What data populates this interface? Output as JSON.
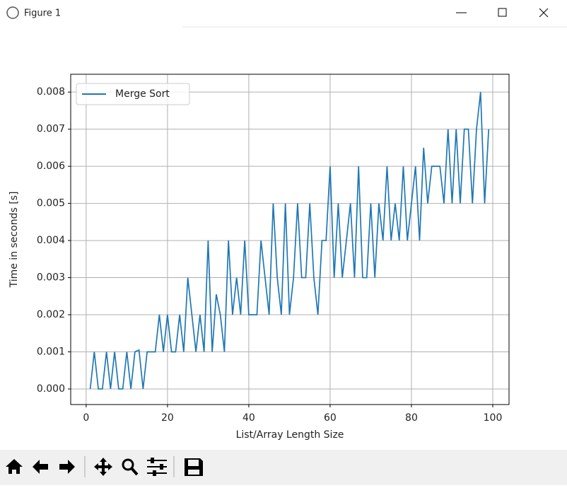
{
  "window": {
    "title": "Figure 1"
  },
  "chart_data": {
    "type": "line",
    "xlabel": "List/Array Length Size",
    "ylabel": "Time in seconds [s]",
    "x": [
      1,
      2,
      3,
      4,
      5,
      6,
      7,
      8,
      9,
      10,
      11,
      12,
      13,
      14,
      15,
      16,
      17,
      18,
      19,
      20,
      21,
      22,
      23,
      24,
      25,
      26,
      27,
      28,
      29,
      30,
      31,
      32,
      33,
      34,
      35,
      36,
      37,
      38,
      39,
      40,
      41,
      42,
      43,
      44,
      45,
      46,
      47,
      48,
      49,
      50,
      51,
      52,
      53,
      54,
      55,
      56,
      57,
      58,
      59,
      60,
      61,
      62,
      63,
      64,
      65,
      66,
      67,
      68,
      69,
      70,
      71,
      72,
      73,
      74,
      75,
      76,
      77,
      78,
      79,
      80,
      81,
      82,
      83,
      84,
      85,
      86,
      87,
      88,
      89,
      90,
      91,
      92,
      93,
      94,
      95,
      96,
      97,
      98,
      99
    ],
    "series": [
      {
        "name": "Merge Sort",
        "color": "#1f77b4",
        "values": [
          0,
          0.001,
          0,
          0,
          0.001,
          0,
          0.001,
          0,
          0,
          0.001,
          0,
          0.001,
          0.00105,
          0,
          0.001,
          0.001,
          0.001,
          0.002,
          0.001,
          0.002,
          0.001,
          0.001,
          0.002,
          0.001,
          0.003,
          0.002,
          0.001,
          0.002,
          0.001,
          0.004,
          0.001,
          0.00255,
          0.002,
          0.001,
          0.004,
          0.002,
          0.003,
          0.002,
          0.004,
          0.002,
          0.002,
          0.002,
          0.004,
          0.003,
          0.002,
          0.005,
          0.003,
          0.002,
          0.005,
          0.002,
          0.003,
          0.005,
          0.003,
          0.003,
          0.005,
          0.003,
          0.002,
          0.004,
          0.004,
          0.006,
          0.003,
          0.005,
          0.003,
          0.004,
          0.005,
          0.003,
          0.006,
          0.003,
          0.003,
          0.005,
          0.003,
          0.005,
          0.004,
          0.006,
          0.004,
          0.005,
          0.004,
          0.006,
          0.004,
          0.005,
          0.006,
          0.004,
          0.0065,
          0.005,
          0.006,
          0.006,
          0.006,
          0.005,
          0.007,
          0.005,
          0.007,
          0.005,
          0.007,
          0.007,
          0.005,
          0.007,
          0.008,
          0.005,
          0.007
        ]
      }
    ],
    "xlim": [
      -3.8,
      104
    ],
    "ylim": [
      -0.00042,
      0.00848
    ],
    "xticks": [
      0,
      20,
      40,
      60,
      80,
      100
    ],
    "yticks": [
      {
        "value": 0,
        "label": "0.000"
      },
      {
        "value": 0.001,
        "label": "0.001"
      },
      {
        "value": 0.002,
        "label": "0.002"
      },
      {
        "value": 0.003,
        "label": "0.003"
      },
      {
        "value": 0.004,
        "label": "0.004"
      },
      {
        "value": 0.005,
        "label": "0.005"
      },
      {
        "value": 0.006,
        "label": "0.006"
      },
      {
        "value": 0.007,
        "label": "0.007"
      },
      {
        "value": 0.008,
        "label": "0.008"
      }
    ],
    "grid": true,
    "legend": "upper left"
  }
}
